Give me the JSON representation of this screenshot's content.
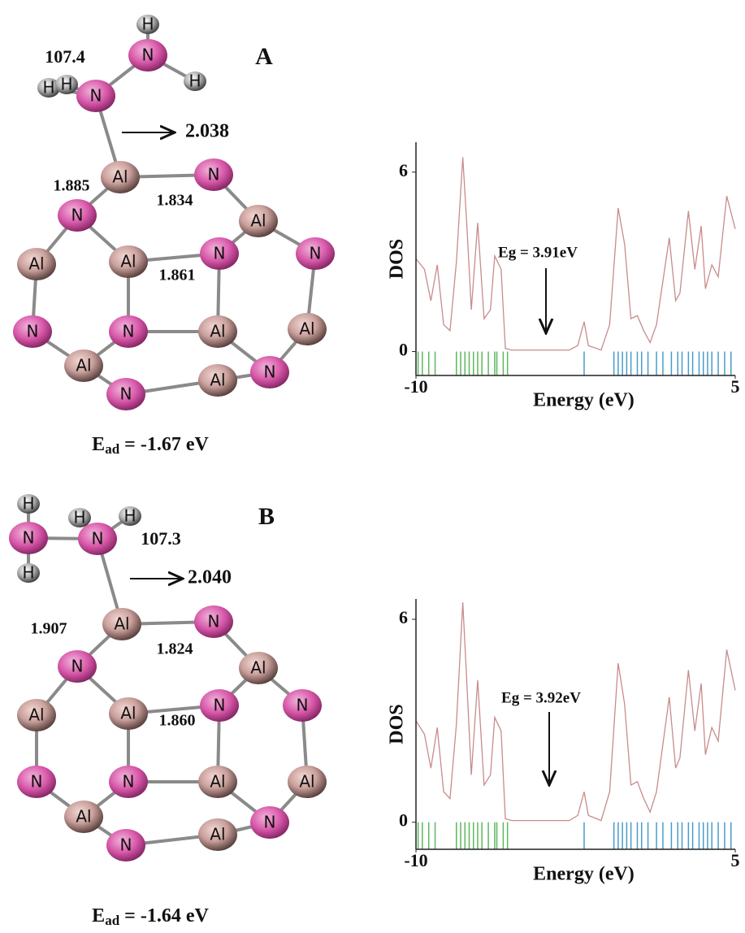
{
  "structures": [
    {
      "label": "A",
      "angle": "107.4",
      "distances": [
        "2.038",
        "1.885",
        "1.834",
        "1.861"
      ],
      "atoms": [
        "H",
        "N",
        "H",
        "H",
        "H",
        "N",
        "Al",
        "N",
        "N",
        "Al",
        "Al",
        "Al",
        "N",
        "N",
        "N",
        "N",
        "Al",
        "Al",
        "Al",
        "N",
        "N",
        "Al"
      ],
      "energy": {
        "symbol": "E",
        "sub": "ad",
        "text": " = -1.67 eV"
      }
    },
    {
      "label": "B",
      "angle": "107.3",
      "distances": [
        "2.040",
        "1.907",
        "1.824",
        "1.860"
      ],
      "atoms": [
        "H",
        "N",
        "H",
        "H",
        "H",
        "N",
        "Al",
        "N",
        "N",
        "Al",
        "Al",
        "Al",
        "N",
        "N",
        "N",
        "N",
        "Al",
        "Al",
        "Al",
        "N",
        "N",
        "Al"
      ],
      "energy": {
        "symbol": "E",
        "sub": "ad",
        "text": " = -1.64 eV"
      }
    }
  ],
  "chart_data": [
    {
      "type": "line",
      "xlabel": "Energy (eV)",
      "ylabel": "DOS",
      "annotation": "Eg = 3.91eV",
      "x": [
        -10,
        -9.6,
        -9.3,
        -9.0,
        -8.7,
        -8.4,
        -8.1,
        -7.8,
        -7.6,
        -7.4,
        -7.1,
        -6.8,
        -6.5,
        -6.3,
        -6.0,
        -5.8,
        -5.5,
        -2.8,
        -2.4,
        -2.1,
        -1.9,
        -1.3,
        -0.9,
        -0.5,
        -0.2,
        0.1,
        0.4,
        0.7,
        1.0,
        1.3,
        1.9,
        2.2,
        2.4,
        2.8,
        3.1,
        3.4,
        3.6,
        3.9,
        4.2,
        4.6,
        5
      ],
      "values": [
        3.1,
        2.75,
        1.7,
        2.9,
        0.9,
        0.7,
        3.0,
        6.5,
        4.1,
        1.4,
        4.3,
        1.1,
        1.4,
        3.2,
        2.75,
        0.1,
        0.05,
        0.05,
        0.2,
        1.0,
        0.2,
        0.05,
        0.9,
        4.8,
        3.6,
        1.1,
        1.2,
        0.7,
        0.3,
        0.9,
        3.8,
        1.7,
        1.95,
        4.7,
        2.75,
        4.2,
        2.1,
        2.9,
        2.5,
        5.2,
        4.1
      ],
      "color": "#c98b8b",
      "levels": [
        {
          "color": "#5cb85c",
          "x": [
            -9.9,
            -9.7,
            -9.4,
            -9.1,
            -8.1,
            -7.9,
            -7.7,
            -7.5,
            -7.3,
            -7.1,
            -6.9,
            -6.6,
            -6.3,
            -6.2,
            -5.9,
            -5.7
          ]
        },
        {
          "color": "#4a9cc8",
          "x": [
            -2.1,
            -0.7,
            -0.5,
            -0.3,
            -0.1,
            0.1,
            0.4,
            0.6,
            0.9,
            1.3,
            1.6,
            2.0,
            2.3,
            2.5,
            2.8,
            3.0,
            3.3,
            3.5,
            3.7,
            3.9,
            4.2,
            4.5,
            4.8
          ]
        }
      ],
      "xlim": [
        -10,
        5
      ],
      "ylim": [
        -0.8,
        7
      ],
      "xticks": [
        -10,
        5
      ],
      "yticks": [
        0,
        6
      ]
    },
    {
      "type": "line",
      "xlabel": "Energy (eV)",
      "ylabel": "DOS",
      "annotation": "Eg = 3.92eV",
      "x": [
        -10,
        -9.6,
        -9.3,
        -9.0,
        -8.7,
        -8.4,
        -8.1,
        -7.8,
        -7.6,
        -7.4,
        -7.1,
        -6.8,
        -6.5,
        -6.3,
        -6.0,
        -5.8,
        -5.5,
        -2.8,
        -2.4,
        -2.1,
        -1.9,
        -1.3,
        -0.9,
        -0.5,
        -0.2,
        0.1,
        0.4,
        0.7,
        1.0,
        1.3,
        1.9,
        2.2,
        2.4,
        2.8,
        3.1,
        3.4,
        3.6,
        3.9,
        4.2,
        4.6,
        5
      ],
      "values": [
        3.0,
        2.6,
        1.6,
        2.8,
        0.9,
        0.7,
        2.9,
        6.5,
        4.0,
        1.4,
        4.2,
        1.1,
        1.4,
        3.1,
        2.7,
        0.1,
        0.05,
        0.05,
        0.2,
        0.9,
        0.2,
        0.05,
        0.9,
        4.7,
        3.5,
        1.1,
        1.2,
        0.7,
        0.3,
        0.9,
        3.7,
        1.6,
        1.9,
        4.5,
        2.7,
        4.1,
        2.0,
        2.8,
        2.4,
        5.1,
        3.9
      ],
      "color": "#c98b8b",
      "levels": [
        {
          "color": "#5cb85c",
          "x": [
            -9.9,
            -9.7,
            -9.4,
            -9.1,
            -8.1,
            -7.9,
            -7.7,
            -7.5,
            -7.3,
            -7.1,
            -6.9,
            -6.6,
            -6.3,
            -6.2,
            -5.9,
            -5.7
          ]
        },
        {
          "color": "#4a9cc8",
          "x": [
            -2.1,
            -0.7,
            -0.5,
            -0.3,
            -0.1,
            0.1,
            0.4,
            0.6,
            0.9,
            1.3,
            1.6,
            2.0,
            2.3,
            2.5,
            2.8,
            3.0,
            3.3,
            3.5,
            3.7,
            3.9,
            4.2,
            4.5,
            4.8
          ]
        }
      ],
      "xlim": [
        -10,
        5
      ],
      "ylim": [
        -0.8,
        6.6
      ],
      "xticks": [
        -10,
        5
      ],
      "yticks": [
        0,
        6
      ]
    }
  ]
}
